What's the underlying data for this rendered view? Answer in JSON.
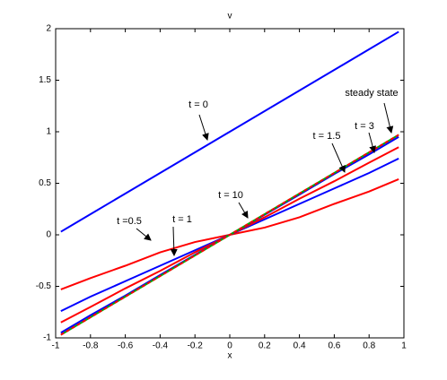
{
  "chart_data": {
    "type": "line",
    "title": "v",
    "x_label": "x",
    "x": [
      -0.97,
      -0.8,
      -0.6,
      -0.4,
      -0.2,
      0,
      0.2,
      0.4,
      0.6,
      0.8,
      0.97
    ],
    "series": [
      {
        "name": "t = 0",
        "color": "#0000ff",
        "linestyle": "-",
        "values": [
          0.03,
          0.2,
          0.4,
          0.6,
          0.8,
          1,
          1.2,
          1.4,
          1.6,
          1.8,
          1.97
        ]
      },
      {
        "name": "t =0.5",
        "color": "#ff0000",
        "linestyle": "-",
        "values": [
          -0.53,
          -0.42,
          -0.3,
          -0.17,
          -0.07,
          0,
          0.07,
          0.17,
          0.3,
          0.42,
          0.54
        ]
      },
      {
        "name": "t = 1",
        "color": "#0000ff",
        "linestyle": "-",
        "values": [
          -0.74,
          -0.6,
          -0.45,
          -0.3,
          -0.15,
          0,
          0.15,
          0.3,
          0.45,
          0.6,
          0.74
        ]
      },
      {
        "name": "t = 1.5",
        "color": "#ff0000",
        "linestyle": "-",
        "values": [
          -0.85,
          -0.7,
          -0.52,
          -0.35,
          -0.17,
          0,
          0.17,
          0.35,
          0.52,
          0.7,
          0.85
        ]
      },
      {
        "name": "t = 3",
        "color": "#0000ff",
        "linestyle": "-",
        "values": [
          -0.95,
          -0.78,
          -0.59,
          -0.39,
          -0.195,
          0,
          0.195,
          0.39,
          0.59,
          0.78,
          0.95
        ]
      },
      {
        "name": "t = 10",
        "color": "#00aa00",
        "linestyle": "-",
        "values": [
          -0.97,
          -0.8,
          -0.6,
          -0.4,
          -0.2,
          0,
          0.2,
          0.4,
          0.6,
          0.8,
          0.97
        ]
      },
      {
        "name": "steady state",
        "color": "#ff0000",
        "linestyle": "--",
        "values": [
          -0.97,
          -0.8,
          -0.6,
          -0.4,
          -0.2,
          0,
          0.2,
          0.4,
          0.6,
          0.8,
          0.97
        ]
      }
    ],
    "xlim": [
      -1,
      1
    ],
    "xticks": [
      -1,
      -0.8,
      -0.6,
      -0.4,
      -0.2,
      0,
      0.2,
      0.4,
      0.6,
      0.8,
      1
    ],
    "ylim": [
      -1,
      2
    ],
    "yticks": [
      -1,
      -0.5,
      0,
      0.5,
      1,
      1.5,
      2
    ],
    "grid": false
  }
}
